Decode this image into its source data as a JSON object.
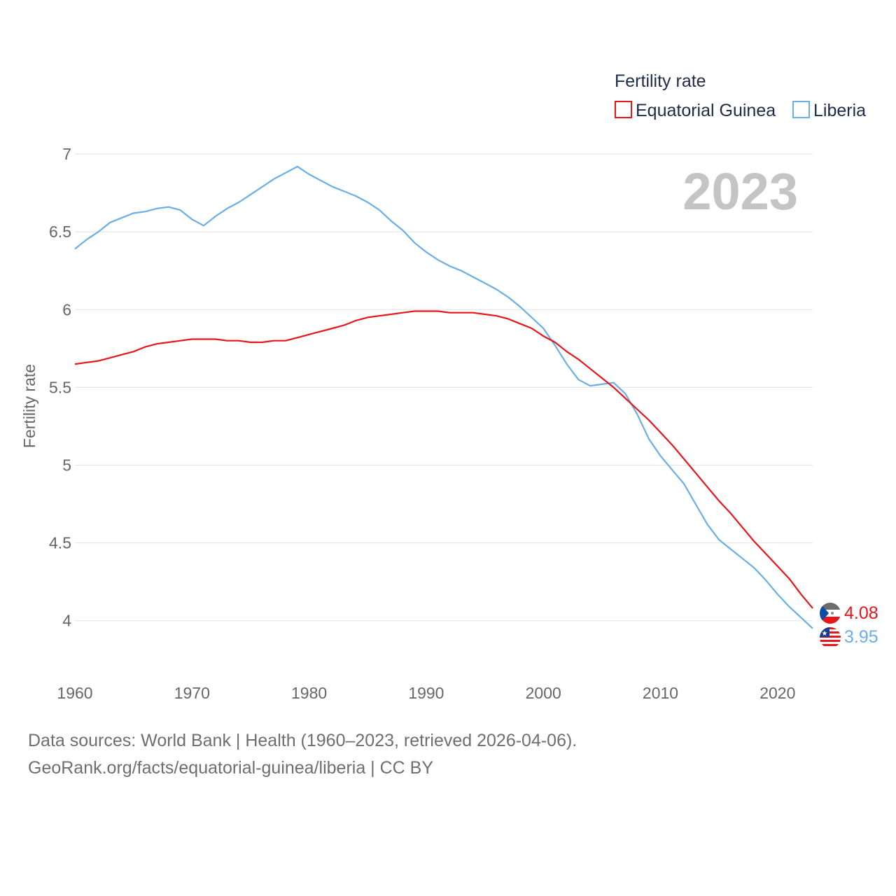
{
  "chart_data": {
    "type": "line",
    "legend_title": "Fertility rate",
    "ylabel": "Fertility rate",
    "xlabel": "",
    "xlim": [
      1960,
      2023
    ],
    "ylim": [
      3.85,
      7.05
    ],
    "year_stamp": "2023",
    "x_ticks": [
      1960,
      1970,
      1980,
      1990,
      2000,
      2010,
      2020
    ],
    "x_tick_labels": [
      "1960",
      "1970",
      "1980",
      "1990",
      "2000",
      "2010",
      "2020"
    ],
    "y_ticks": [
      4,
      4.5,
      5,
      5.5,
      6,
      6.5,
      7
    ],
    "y_tick_labels": [
      "4",
      "4.5",
      "5",
      "5.5",
      "6",
      "6.5",
      "7"
    ],
    "grid": true,
    "legend_position": "top-right",
    "series": [
      {
        "name": "Equatorial Guinea",
        "color": "#e8151b",
        "end_label": "4.08",
        "flag": "equatorial-guinea-flag-icon",
        "x": [
          1960,
          1961,
          1962,
          1963,
          1964,
          1965,
          1966,
          1967,
          1968,
          1969,
          1970,
          1971,
          1972,
          1973,
          1974,
          1975,
          1976,
          1977,
          1978,
          1979,
          1980,
          1981,
          1982,
          1983,
          1984,
          1985,
          1986,
          1987,
          1988,
          1989,
          1990,
          1991,
          1992,
          1993,
          1994,
          1995,
          1996,
          1997,
          1998,
          1999,
          2000,
          2001,
          2002,
          2003,
          2004,
          2005,
          2006,
          2007,
          2008,
          2009,
          2010,
          2011,
          2012,
          2013,
          2014,
          2015,
          2016,
          2017,
          2018,
          2019,
          2020,
          2021,
          2022,
          2023
        ],
        "values": [
          5.65,
          5.66,
          5.67,
          5.69,
          5.71,
          5.73,
          5.76,
          5.78,
          5.79,
          5.8,
          5.81,
          5.81,
          5.81,
          5.8,
          5.8,
          5.79,
          5.79,
          5.8,
          5.8,
          5.82,
          5.84,
          5.86,
          5.88,
          5.9,
          5.93,
          5.95,
          5.96,
          5.97,
          5.98,
          5.99,
          5.99,
          5.99,
          5.98,
          5.98,
          5.98,
          5.97,
          5.96,
          5.94,
          5.91,
          5.88,
          5.83,
          5.79,
          5.73,
          5.68,
          5.62,
          5.56,
          5.5,
          5.43,
          5.36,
          5.29,
          5.21,
          5.13,
          5.04,
          4.95,
          4.86,
          4.77,
          4.69,
          4.6,
          4.51,
          4.43,
          4.35,
          4.27,
          4.17,
          4.08
        ]
      },
      {
        "name": "Liberia",
        "color": "#6aaee8",
        "end_label": "3.95",
        "flag": "liberia-flag-icon",
        "x": [
          1960,
          1961,
          1962,
          1963,
          1964,
          1965,
          1966,
          1967,
          1968,
          1969,
          1970,
          1971,
          1972,
          1973,
          1974,
          1975,
          1976,
          1977,
          1978,
          1979,
          1980,
          1981,
          1982,
          1983,
          1984,
          1985,
          1986,
          1987,
          1988,
          1989,
          1990,
          1991,
          1992,
          1993,
          1994,
          1995,
          1996,
          1997,
          1998,
          1999,
          2000,
          2001,
          2002,
          2003,
          2004,
          2005,
          2006,
          2007,
          2008,
          2009,
          2010,
          2011,
          2012,
          2013,
          2014,
          2015,
          2016,
          2017,
          2018,
          2019,
          2020,
          2021,
          2022,
          2023
        ],
        "values": [
          6.39,
          6.45,
          6.5,
          6.56,
          6.59,
          6.62,
          6.63,
          6.65,
          6.66,
          6.64,
          6.58,
          6.54,
          6.6,
          6.65,
          6.69,
          6.74,
          6.79,
          6.84,
          6.88,
          6.92,
          6.87,
          6.83,
          6.79,
          6.76,
          6.73,
          6.69,
          6.64,
          6.57,
          6.51,
          6.43,
          6.37,
          6.32,
          6.28,
          6.25,
          6.21,
          6.17,
          6.13,
          6.08,
          6.02,
          5.95,
          5.88,
          5.77,
          5.65,
          5.55,
          5.51,
          5.52,
          5.53,
          5.46,
          5.33,
          5.17,
          5.06,
          4.97,
          4.88,
          4.75,
          4.62,
          4.52,
          4.46,
          4.4,
          4.34,
          4.26,
          4.17,
          4.09,
          4.02,
          3.95
        ]
      }
    ]
  },
  "footer": {
    "source_line1": "Data sources: World Bank | Health (1960–2023, retrieved 2026-04-06).",
    "source_line2": "GeoRank.org/facts/equatorial-guinea/liberia | CC BY"
  }
}
